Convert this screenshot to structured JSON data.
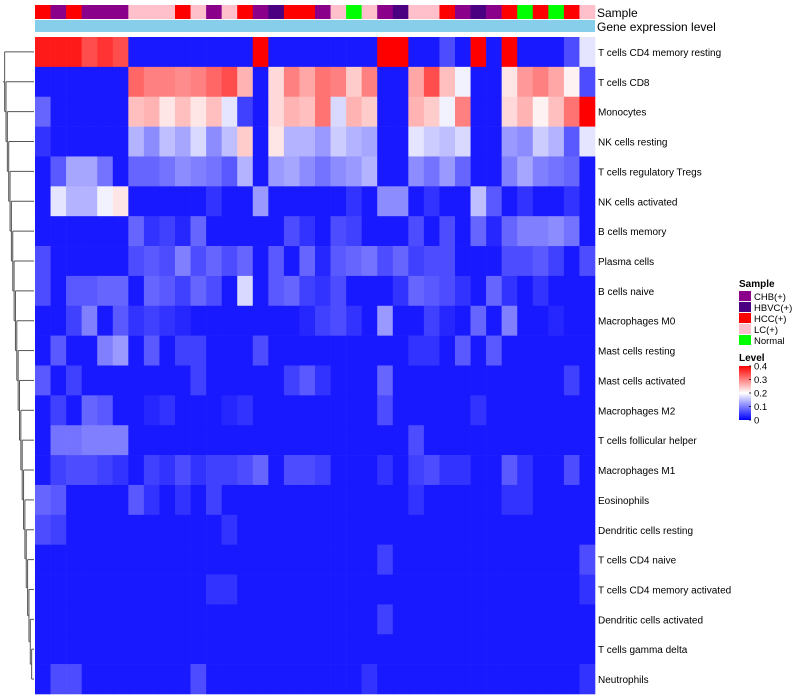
{
  "chart_data": {
    "type": "heatmap",
    "title": "",
    "annotation_tracks": [
      "Sample",
      "Gene expression level"
    ],
    "cell_types": [
      "T cells CD4 memory resting",
      "T cells CD8",
      "Monocytes",
      "NK cells resting",
      "T cells regulatory  Tregs",
      "NK cells activated",
      "B cells memory",
      "Plasma cells",
      "B cells naive",
      "Macrophages M0",
      "Mast cells resting",
      "Mast cells activated",
      "Macrophages M2",
      "T cells follicular helper",
      "Macrophages M1",
      "Eosinophils",
      "Dendritic cells resting",
      "T cells CD4 naive",
      "T cells CD4 memory activated",
      "Dendritic cells activated",
      "T cells gamma delta",
      "Neutrophils"
    ],
    "sample_groups": [
      "HCC(+)",
      "CHB(+)",
      "HCC(+)",
      "CHB(+)",
      "CHB(+)",
      "CHB(+)",
      "LC(+)",
      "LC(+)",
      "LC(+)",
      "HCC(+)",
      "LC(+)",
      "CHB(+)",
      "LC(+)",
      "HCC(+)",
      "CHB(+)",
      "HBVC(+)",
      "HCC(+)",
      "HCC(+)",
      "CHB(+)",
      "LC(+)",
      "Normal",
      "LC(+)",
      "CHB(+)",
      "HBVC(+)",
      "LC(+)",
      "LC(+)",
      "HCC(+)",
      "CHB(+)",
      "HBVC(+)",
      "CHB(+)",
      "HCC(+)",
      "Normal",
      "HCC(+)",
      "Normal",
      "HCC(+)",
      "LC(+)"
    ],
    "values": [
      [
        0.38,
        0.38,
        0.38,
        0.34,
        0.36,
        0.34,
        0.02,
        0.02,
        0.02,
        0.02,
        0.02,
        0.02,
        0.02,
        0.02,
        0.4,
        0.02,
        0.02,
        0.02,
        0.02,
        0.02,
        0.02,
        0.02,
        0.4,
        0.4,
        0.02,
        0.02,
        0.06,
        0.02,
        0.4,
        0.02,
        0.4,
        0.02,
        0.02,
        0.02,
        0.06,
        0.18
      ],
      [
        0.02,
        0.02,
        0.02,
        0.02,
        0.02,
        0.02,
        0.32,
        0.3,
        0.3,
        0.29,
        0.3,
        0.32,
        0.34,
        0.26,
        0.02,
        0.23,
        0.3,
        0.27,
        0.31,
        0.3,
        0.24,
        0.3,
        0.02,
        0.02,
        0.27,
        0.34,
        0.25,
        0.19,
        0.02,
        0.02,
        0.22,
        0.28,
        0.3,
        0.27,
        0.21,
        0.06
      ],
      [
        0.08,
        0.02,
        0.02,
        0.02,
        0.02,
        0.02,
        0.25,
        0.26,
        0.22,
        0.25,
        0.22,
        0.25,
        0.18,
        0.05,
        0.02,
        0.23,
        0.26,
        0.25,
        0.31,
        0.17,
        0.26,
        0.24,
        0.02,
        0.02,
        0.26,
        0.24,
        0.19,
        0.3,
        0.02,
        0.02,
        0.23,
        0.26,
        0.21,
        0.25,
        0.31,
        0.4
      ],
      [
        0.04,
        0.02,
        0.02,
        0.02,
        0.02,
        0.02,
        0.14,
        0.11,
        0.15,
        0.13,
        0.17,
        0.11,
        0.15,
        0.24,
        0.02,
        0.22,
        0.14,
        0.14,
        0.12,
        0.16,
        0.14,
        0.13,
        0.02,
        0.02,
        0.18,
        0.16,
        0.15,
        0.17,
        0.02,
        0.02,
        0.12,
        0.11,
        0.16,
        0.14,
        0.07,
        0.18
      ],
      [
        0.02,
        0.07,
        0.13,
        0.13,
        0.09,
        0.02,
        0.08,
        0.08,
        0.09,
        0.11,
        0.1,
        0.09,
        0.07,
        0.14,
        0.02,
        0.12,
        0.13,
        0.11,
        0.09,
        0.11,
        0.12,
        0.14,
        0.02,
        0.02,
        0.11,
        0.09,
        0.12,
        0.08,
        0.02,
        0.02,
        0.1,
        0.13,
        0.1,
        0.09,
        0.08,
        0.02
      ],
      [
        0.02,
        0.18,
        0.14,
        0.14,
        0.19,
        0.22,
        0.02,
        0.02,
        0.02,
        0.02,
        0.02,
        0.04,
        0.02,
        0.02,
        0.12,
        0.02,
        0.02,
        0.02,
        0.02,
        0.02,
        0.04,
        0.02,
        0.11,
        0.11,
        0.02,
        0.04,
        0.02,
        0.02,
        0.15,
        0.07,
        0.02,
        0.04,
        0.02,
        0.02,
        0.04,
        0.02
      ],
      [
        0.02,
        0.02,
        0.02,
        0.02,
        0.02,
        0.02,
        0.08,
        0.04,
        0.05,
        0.03,
        0.08,
        0.02,
        0.02,
        0.02,
        0.02,
        0.02,
        0.06,
        0.04,
        0.02,
        0.06,
        0.05,
        0.02,
        0.02,
        0.02,
        0.06,
        0.02,
        0.06,
        0.02,
        0.08,
        0.03,
        0.08,
        0.1,
        0.1,
        0.11,
        0.09,
        0.02
      ],
      [
        0.06,
        0.02,
        0.02,
        0.02,
        0.02,
        0.02,
        0.06,
        0.07,
        0.06,
        0.1,
        0.06,
        0.08,
        0.06,
        0.08,
        0.02,
        0.07,
        0.02,
        0.08,
        0.03,
        0.07,
        0.08,
        0.09,
        0.06,
        0.08,
        0.05,
        0.06,
        0.06,
        0.02,
        0.02,
        0.02,
        0.06,
        0.06,
        0.07,
        0.05,
        0.02,
        0.06
      ],
      [
        0.06,
        0.02,
        0.07,
        0.07,
        0.08,
        0.08,
        0.02,
        0.08,
        0.07,
        0.05,
        0.08,
        0.06,
        0.02,
        0.17,
        0.02,
        0.07,
        0.08,
        0.05,
        0.04,
        0.06,
        0.02,
        0.02,
        0.02,
        0.04,
        0.08,
        0.07,
        0.06,
        0.04,
        0.02,
        0.08,
        0.04,
        0.02,
        0.04,
        0.02,
        0.02,
        0.02
      ],
      [
        0.02,
        0.02,
        0.05,
        0.1,
        0.02,
        0.07,
        0.04,
        0.05,
        0.04,
        0.03,
        0.02,
        0.02,
        0.02,
        0.02,
        0.02,
        0.02,
        0.02,
        0.03,
        0.05,
        0.06,
        0.04,
        0.02,
        0.12,
        0.02,
        0.02,
        0.05,
        0.03,
        0.02,
        0.08,
        0.02,
        0.1,
        0.02,
        0.02,
        0.03,
        0.02,
        0.02
      ],
      [
        0.02,
        0.07,
        0.02,
        0.02,
        0.1,
        0.12,
        0.02,
        0.07,
        0.02,
        0.05,
        0.05,
        0.02,
        0.02,
        0.02,
        0.06,
        0.02,
        0.02,
        0.02,
        0.02,
        0.02,
        0.02,
        0.02,
        0.02,
        0.02,
        0.04,
        0.04,
        0.02,
        0.07,
        0.02,
        0.07,
        0.02,
        0.02,
        0.02,
        0.02,
        0.02,
        0.02
      ],
      [
        0.07,
        0.02,
        0.05,
        0.02,
        0.02,
        0.02,
        0.02,
        0.02,
        0.02,
        0.02,
        0.05,
        0.02,
        0.02,
        0.02,
        0.02,
        0.02,
        0.05,
        0.07,
        0.04,
        0.02,
        0.02,
        0.02,
        0.08,
        0.02,
        0.02,
        0.02,
        0.02,
        0.02,
        0.02,
        0.02,
        0.02,
        0.02,
        0.02,
        0.02,
        0.05,
        0.02
      ],
      [
        0.02,
        0.05,
        0.02,
        0.08,
        0.07,
        0.02,
        0.02,
        0.03,
        0.04,
        0.02,
        0.02,
        0.02,
        0.03,
        0.04,
        0.02,
        0.02,
        0.02,
        0.02,
        0.02,
        0.02,
        0.02,
        0.02,
        0.06,
        0.02,
        0.02,
        0.02,
        0.02,
        0.02,
        0.04,
        0.02,
        0.02,
        0.02,
        0.02,
        0.02,
        0.02,
        0.02
      ],
      [
        0.02,
        0.09,
        0.09,
        0.1,
        0.1,
        0.1,
        0.02,
        0.02,
        0.02,
        0.02,
        0.02,
        0.02,
        0.02,
        0.02,
        0.02,
        0.02,
        0.02,
        0.02,
        0.02,
        0.02,
        0.02,
        0.02,
        0.02,
        0.02,
        0.06,
        0.02,
        0.02,
        0.02,
        0.02,
        0.02,
        0.02,
        0.02,
        0.02,
        0.02,
        0.02,
        0.02
      ],
      [
        0.02,
        0.05,
        0.06,
        0.06,
        0.05,
        0.04,
        0.02,
        0.05,
        0.04,
        0.06,
        0.04,
        0.05,
        0.05,
        0.06,
        0.08,
        0.02,
        0.06,
        0.06,
        0.05,
        0.02,
        0.02,
        0.02,
        0.04,
        0.02,
        0.05,
        0.06,
        0.04,
        0.04,
        0.02,
        0.02,
        0.07,
        0.04,
        0.02,
        0.02,
        0.06,
        0.02
      ],
      [
        0.08,
        0.07,
        0.02,
        0.02,
        0.02,
        0.02,
        0.07,
        0.04,
        0.02,
        0.04,
        0.02,
        0.05,
        0.02,
        0.02,
        0.02,
        0.02,
        0.02,
        0.02,
        0.02,
        0.02,
        0.02,
        0.02,
        0.02,
        0.02,
        0.04,
        0.02,
        0.02,
        0.02,
        0.02,
        0.02,
        0.04,
        0.04,
        0.02,
        0.02,
        0.02,
        0.02
      ],
      [
        0.06,
        0.05,
        0.02,
        0.02,
        0.02,
        0.02,
        0.02,
        0.02,
        0.02,
        0.02,
        0.02,
        0.02,
        0.04,
        0.02,
        0.02,
        0.02,
        0.02,
        0.02,
        0.02,
        0.02,
        0.02,
        0.02,
        0.02,
        0.02,
        0.02,
        0.02,
        0.02,
        0.02,
        0.02,
        0.02,
        0.02,
        0.02,
        0.02,
        0.02,
        0.02,
        0.02
      ],
      [
        0.02,
        0.02,
        0.02,
        0.02,
        0.02,
        0.02,
        0.02,
        0.02,
        0.02,
        0.02,
        0.02,
        0.02,
        0.02,
        0.02,
        0.02,
        0.02,
        0.02,
        0.02,
        0.02,
        0.02,
        0.02,
        0.02,
        0.05,
        0.02,
        0.02,
        0.02,
        0.02,
        0.02,
        0.02,
        0.02,
        0.02,
        0.02,
        0.02,
        0.02,
        0.02,
        0.06
      ],
      [
        0.02,
        0.02,
        0.02,
        0.02,
        0.02,
        0.02,
        0.02,
        0.02,
        0.02,
        0.02,
        0.02,
        0.04,
        0.04,
        0.02,
        0.02,
        0.02,
        0.02,
        0.02,
        0.02,
        0.02,
        0.02,
        0.02,
        0.02,
        0.02,
        0.02,
        0.02,
        0.02,
        0.02,
        0.02,
        0.02,
        0.02,
        0.02,
        0.02,
        0.02,
        0.02,
        0.04
      ],
      [
        0.02,
        0.02,
        0.02,
        0.02,
        0.02,
        0.02,
        0.02,
        0.02,
        0.02,
        0.02,
        0.02,
        0.02,
        0.02,
        0.02,
        0.02,
        0.02,
        0.02,
        0.02,
        0.02,
        0.02,
        0.02,
        0.02,
        0.05,
        0.02,
        0.02,
        0.02,
        0.02,
        0.02,
        0.02,
        0.02,
        0.02,
        0.02,
        0.02,
        0.02,
        0.02,
        0.02
      ],
      [
        0.02,
        0.02,
        0.02,
        0.02,
        0.02,
        0.02,
        0.02,
        0.02,
        0.02,
        0.02,
        0.02,
        0.02,
        0.02,
        0.02,
        0.02,
        0.02,
        0.02,
        0.02,
        0.02,
        0.02,
        0.02,
        0.02,
        0.02,
        0.02,
        0.02,
        0.02,
        0.02,
        0.02,
        0.02,
        0.02,
        0.02,
        0.02,
        0.02,
        0.02,
        0.02,
        0.02
      ],
      [
        0.02,
        0.06,
        0.06,
        0.02,
        0.02,
        0.02,
        0.02,
        0.02,
        0.02,
        0.02,
        0.06,
        0.02,
        0.02,
        0.02,
        0.02,
        0.02,
        0.02,
        0.02,
        0.02,
        0.02,
        0.02,
        0.04,
        0.02,
        0.02,
        0.02,
        0.02,
        0.02,
        0.02,
        0.02,
        0.02,
        0.02,
        0.02,
        0.02,
        0.02,
        0.02,
        0.04
      ]
    ],
    "color_scale": {
      "min": 0,
      "max": 0.4,
      "stops": [
        {
          "value": 0,
          "color": "#0000ff"
        },
        {
          "value": 0.2,
          "color": "#ffffff"
        },
        {
          "value": 0.4,
          "color": "#ff0000"
        }
      ]
    },
    "legend": {
      "sample": {
        "title": "Sample",
        "entries": [
          {
            "label": "CHB(+)",
            "color": "#8b008b"
          },
          {
            "label": "HBVC(+)",
            "color": "#4b0082"
          },
          {
            "label": "HCC(+)",
            "color": "#ff0000"
          },
          {
            "label": "LC(+)",
            "color": "#ffc0cb"
          },
          {
            "label": "Normal",
            "color": "#00ff00"
          }
        ]
      },
      "level": {
        "title": "Level",
        "ticks": [
          "0.4",
          "0.3",
          "0.2",
          "0.1",
          "0"
        ]
      }
    },
    "gene_expression_level_color": "#87ceeb"
  }
}
